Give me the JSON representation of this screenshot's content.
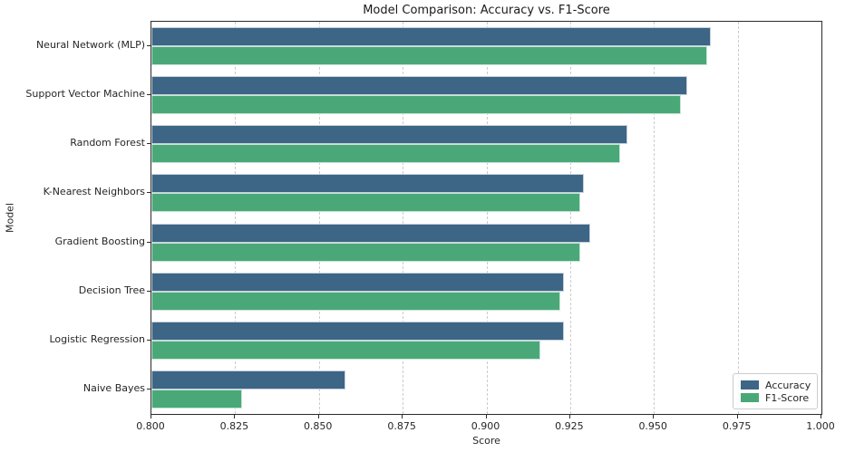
{
  "chart_data": {
    "type": "bar",
    "orientation": "horizontal",
    "title": "Model Comparison: Accuracy vs. F1-Score",
    "xlabel": "Score",
    "ylabel": "Model",
    "xlim": [
      0.8,
      1.0
    ],
    "xticks": [
      "0.800",
      "0.825",
      "0.850",
      "0.875",
      "0.900",
      "0.925",
      "0.950",
      "0.975",
      "1.000"
    ],
    "grid": "vertical-dashed",
    "legend_position": "lower right",
    "categories": [
      "Neural Network (MLP)",
      "Support Vector Machine",
      "Random Forest",
      "K-Nearest Neighbors",
      "Gradient Boosting",
      "Decision Tree",
      "Logistic Regression",
      "Naive Bayes"
    ],
    "series": [
      {
        "name": "Accuracy",
        "color": "#3d6586",
        "values": [
          0.967,
          0.96,
          0.942,
          0.929,
          0.931,
          0.923,
          0.923,
          0.858
        ]
      },
      {
        "name": "F1-Score",
        "color": "#4aa878",
        "values": [
          0.966,
          0.958,
          0.94,
          0.928,
          0.928,
          0.922,
          0.916,
          0.827
        ]
      }
    ]
  }
}
